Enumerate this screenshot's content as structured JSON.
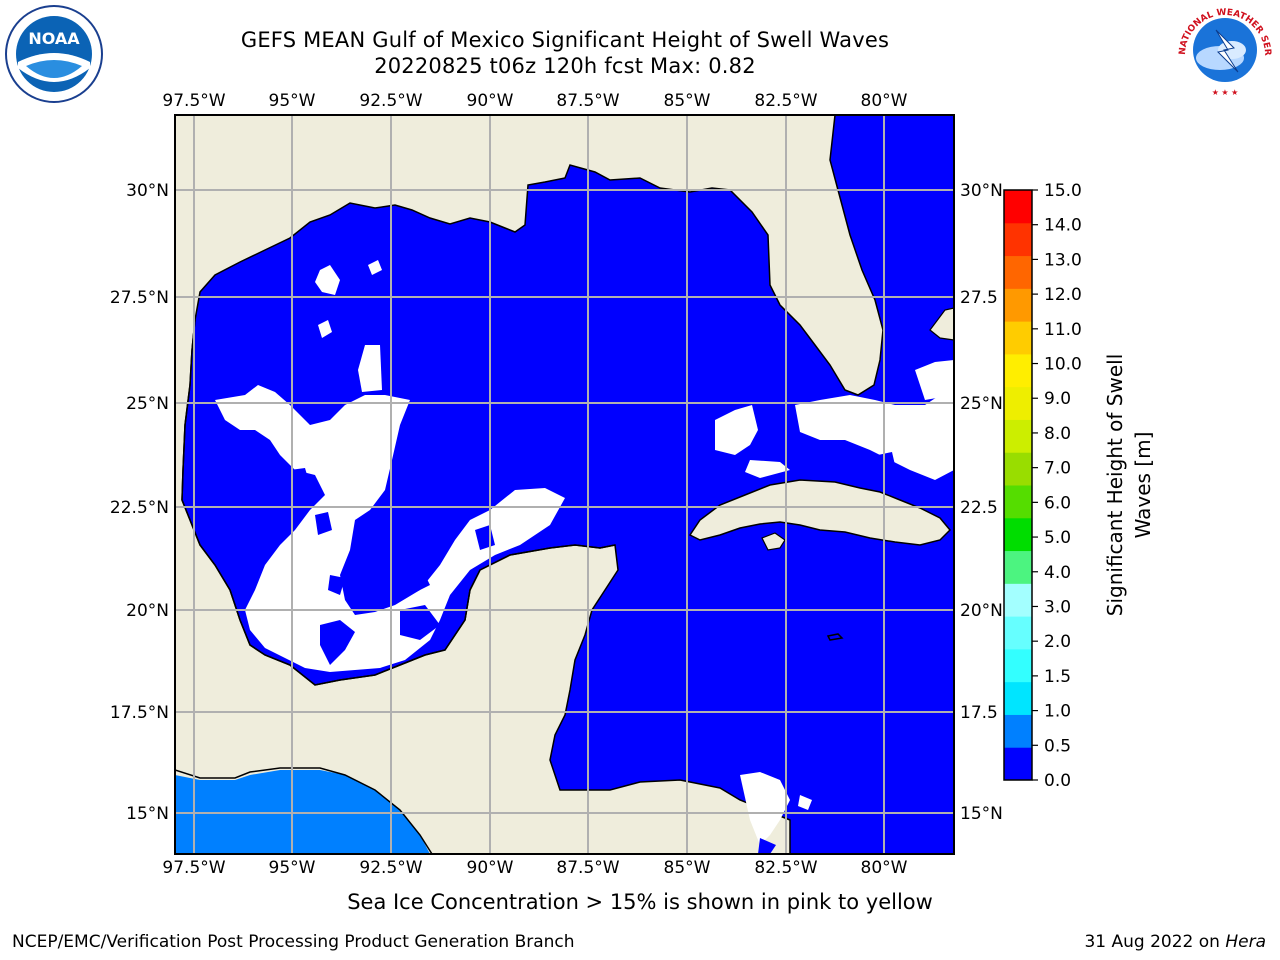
{
  "title": {
    "line1": "GEFS MEAN Gulf of Mexico Significant Height of Swell Waves",
    "line2": "20220825 t06z 120h fcst   Max: 0.82"
  },
  "map": {
    "lon_labels": [
      "97.5°W",
      "95°W",
      "92.5°W",
      "90°W",
      "87.5°W",
      "85°W",
      "82.5°W",
      "80°W"
    ],
    "lat_labels": [
      "30°N",
      "27.5°N",
      "25°N",
      "22.5°N",
      "20°N",
      "17.5°N",
      "15°N"
    ],
    "lat_labels_right": [
      "30°N",
      "27.5",
      "25°N",
      "22.5",
      "20°N",
      "17.5",
      "15°N"
    ],
    "land_color": "#efeddc",
    "sea_low_color": "#0000ff",
    "sea_mid_color": "#0080ff",
    "grid_color": "#b0b0b0"
  },
  "colorbar": {
    "label_line1": "Significant Height of Swell",
    "label_line2": "Waves [m]",
    "ticks": [
      "0.0",
      "0.5",
      "1.0",
      "1.5",
      "2.0",
      "3.0",
      "4.0",
      "5.0",
      "6.0",
      "7.0",
      "8.0",
      "9.0",
      "10.0",
      "11.0",
      "12.0",
      "13.0",
      "14.0",
      "15.0"
    ],
    "colors": [
      "#0000ff",
      "#0080ff",
      "#00e5ff",
      "#33ffff",
      "#66ffff",
      "#a3ffff",
      "#4cf480",
      "#00dd00",
      "#55dd00",
      "#99dd00",
      "#ccee00",
      "#eeee00",
      "#ffee00",
      "#ffcc00",
      "#ff9900",
      "#ff6600",
      "#ff3300",
      "#ff0000"
    ]
  },
  "note": "Sea Ice Concentration > 15% is shown in pink to yellow",
  "footer": {
    "left": "NCEP/EMC/Verification Post Processing Product Generation Branch",
    "date": "31 Aug 2022 on ",
    "host": "Hera"
  },
  "logos": {
    "left_text": "NOAA",
    "right_text": "NATIONAL WEATHER SERVICE"
  }
}
